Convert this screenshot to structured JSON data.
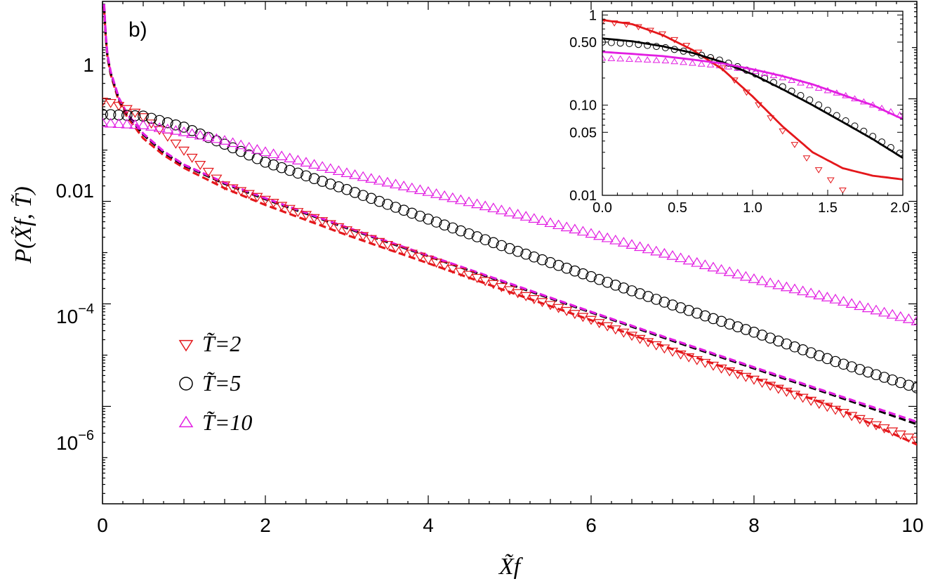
{
  "chart_data": [
    {
      "type": "scatter",
      "panel_label": "b)",
      "xlabel": "X̃f",
      "ylabel": "P(X̃f, T̃)",
      "xlim": [
        0,
        10
      ],
      "ylim_log10": [
        -7.9,
        1.9
      ],
      "y_scale": "log",
      "x_ticks": [
        0,
        2,
        4,
        6,
        8,
        10
      ],
      "x_tick_labels": [
        "0",
        "2",
        "4",
        "6",
        "8",
        "10"
      ],
      "y_ticks": [
        1,
        0.01,
        0.0001,
        1e-06
      ],
      "y_tick_labels": {
        "p0": "1",
        "p2": "0.01",
        "p4_base": "10",
        "p4_exp": "−4",
        "p6_base": "10",
        "p6_exp": "−6"
      },
      "grid": false,
      "legend_placement": "lower-left",
      "legend": [
        {
          "label": "T̃=2",
          "marker": "triangle-down",
          "color": "#e4171b"
        },
        {
          "label": "T̃=5",
          "marker": "circle",
          "color": "#000000"
        },
        {
          "label": "T̃=10",
          "marker": "triangle-up",
          "color": "#e21ee2"
        }
      ],
      "series": [
        {
          "name": "T̃=2",
          "kind": "markers",
          "marker": "triangle-down",
          "color": "#e4171b",
          "x": [
            0,
            0.1,
            0.25,
            0.4,
            0.5,
            0.75,
            1.0,
            1.25,
            1.5,
            2,
            3,
            4,
            5,
            6,
            7,
            8,
            9,
            10
          ],
          "y": [
            0.9,
            0.85,
            0.7,
            0.55,
            0.45,
            0.22,
            0.1,
            0.045,
            0.021,
            0.011,
            0.0028,
            0.00075,
            0.00019,
            5e-05,
            1.2e-05,
            3.4e-06,
            8.8e-07,
            2.2e-07
          ]
        },
        {
          "name": "T̃=5",
          "kind": "markers",
          "marker": "circle",
          "color": "#000000",
          "x": [
            0,
            0.5,
            1,
            1.5,
            2,
            3,
            4,
            5,
            6,
            7,
            8,
            9,
            10
          ],
          "y": [
            0.5,
            0.46,
            0.28,
            0.13,
            0.058,
            0.017,
            0.0045,
            0.0012,
            0.00034,
            9.5e-05,
            2.8e-05,
            7.5e-06,
            2.3e-06
          ]
        },
        {
          "name": "T̃=10",
          "kind": "markers",
          "marker": "triangle-up",
          "color": "#e21ee2",
          "x": [
            0,
            0.5,
            1,
            1.5,
            2,
            3,
            4,
            5,
            6,
            7,
            8,
            9,
            10
          ],
          "y": [
            0.33,
            0.3,
            0.22,
            0.15,
            0.09,
            0.035,
            0.015,
            0.006,
            0.0023,
            0.00085,
            0.0003,
            0.00012,
            4.5e-05
          ]
        },
        {
          "name": "T̃=2 asymptote",
          "kind": "dashed",
          "color": "#e4171b",
          "x": [
            0.02,
            0.05,
            0.1,
            0.2,
            0.3,
            0.5,
            0.75,
            1,
            1.5,
            2,
            3,
            4,
            5,
            6,
            7,
            8,
            9,
            10
          ],
          "y": [
            60,
            8,
            3,
            0.9,
            0.45,
            0.17,
            0.08,
            0.045,
            0.018,
            0.0085,
            0.0022,
            0.00062,
            0.00017,
            4.8e-05,
            1.3e-05,
            3.6e-06,
            9.5e-07,
            1.8e-07
          ]
        },
        {
          "name": "T̃=5 asymptote",
          "kind": "dashed",
          "color": "#000000",
          "x": [
            0.02,
            0.05,
            0.1,
            0.2,
            0.3,
            0.5,
            0.75,
            1,
            1.5,
            2,
            3,
            4,
            5,
            6,
            7,
            8,
            9,
            10
          ],
          "y": [
            65,
            8.5,
            3.2,
            1.0,
            0.5,
            0.2,
            0.09,
            0.05,
            0.022,
            0.011,
            0.003,
            0.00085,
            0.00024,
            6.8e-05,
            1.9e-05,
            5.5e-06,
            1.6e-06,
            4.5e-07
          ]
        },
        {
          "name": "T̃=10 asymptote",
          "kind": "dashed",
          "color": "#e21ee2",
          "x": [
            0.02,
            0.05,
            0.1,
            0.2,
            0.3,
            0.5,
            0.75,
            1,
            1.5,
            2,
            3,
            4,
            5,
            6,
            7,
            8,
            9,
            10
          ],
          "y": [
            70,
            9,
            3.4,
            1.05,
            0.52,
            0.21,
            0.095,
            0.052,
            0.023,
            0.0115,
            0.0031,
            0.00088,
            0.00025,
            7e-05,
            2e-05,
            5.8e-06,
            1.7e-06,
            5e-07
          ]
        }
      ]
    },
    {
      "type": "scatter",
      "role": "inset",
      "y_scale": "log",
      "xlim": [
        0,
        2
      ],
      "ylim": [
        0.01,
        1.1
      ],
      "x_ticks": [
        0,
        0.5,
        1,
        1.5,
        2
      ],
      "x_tick_labels": [
        "0.0",
        "0.5",
        "1.0",
        "1.5",
        "2.0"
      ],
      "y_ticks": [
        1,
        0.5,
        0.1,
        0.05,
        0.01
      ],
      "y_tick_labels": [
        "1",
        "0.50",
        "0.10",
        "0.05",
        "0.01"
      ],
      "grid": false,
      "series": [
        {
          "name": "T̃=2",
          "kind": "markers",
          "marker": "triangle-down",
          "color": "#e4171b",
          "x": [
            0,
            0.2,
            0.4,
            0.6,
            0.8,
            1.0,
            1.2,
            1.4,
            1.6,
            1.65
          ],
          "y": [
            0.85,
            0.78,
            0.62,
            0.43,
            0.26,
            0.12,
            0.052,
            0.022,
            0.0115,
            0.0095
          ]
        },
        {
          "name": "T̃=5",
          "kind": "markers",
          "marker": "circle",
          "color": "#000000",
          "x": [
            0,
            0.2,
            0.4,
            0.6,
            0.8,
            1.0,
            1.2,
            1.4,
            1.6,
            1.8,
            2.0
          ],
          "y": [
            0.5,
            0.48,
            0.44,
            0.38,
            0.31,
            0.23,
            0.16,
            0.11,
            0.07,
            0.045,
            0.028
          ]
        },
        {
          "name": "T̃=10",
          "kind": "markers",
          "marker": "triangle-up",
          "color": "#e21ee2",
          "x": [
            0,
            0.2,
            0.4,
            0.6,
            0.8,
            1.0,
            1.2,
            1.4,
            1.6,
            1.8,
            2.0
          ],
          "y": [
            0.33,
            0.32,
            0.31,
            0.29,
            0.27,
            0.24,
            0.2,
            0.16,
            0.13,
            0.1,
            0.075
          ]
        },
        {
          "name": "T̃=2 theory",
          "kind": "solid",
          "color": "#e4171b",
          "x": [
            0,
            0.2,
            0.4,
            0.6,
            0.8,
            1.0,
            1.2,
            1.4,
            1.6,
            1.8,
            2.0
          ],
          "y": [
            0.88,
            0.79,
            0.6,
            0.41,
            0.25,
            0.125,
            0.058,
            0.03,
            0.02,
            0.0165,
            0.015
          ]
        },
        {
          "name": "T̃=5 theory",
          "kind": "solid",
          "color": "#000000",
          "x": [
            0,
            0.2,
            0.4,
            0.6,
            0.8,
            1.0,
            1.2,
            1.4,
            1.6,
            1.8,
            2.0
          ],
          "y": [
            0.55,
            0.51,
            0.45,
            0.38,
            0.3,
            0.22,
            0.15,
            0.1,
            0.065,
            0.042,
            0.026
          ]
        },
        {
          "name": "T̃=10 theory",
          "kind": "solid",
          "color": "#e21ee2",
          "x": [
            0,
            0.2,
            0.4,
            0.6,
            0.8,
            1.0,
            1.2,
            1.4,
            1.6,
            1.8,
            2.0
          ],
          "y": [
            0.39,
            0.37,
            0.35,
            0.32,
            0.29,
            0.25,
            0.21,
            0.17,
            0.13,
            0.1,
            0.07
          ]
        }
      ]
    }
  ]
}
